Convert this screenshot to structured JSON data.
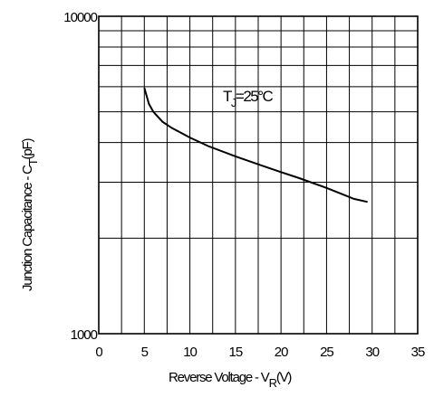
{
  "chart_data": {
    "type": "line",
    "title": "",
    "xlabel": {
      "main": "Reverse Voltage - V",
      "sub": "R",
      "unit": "(V)"
    },
    "ylabel": {
      "main": "Junction Capacitance - C",
      "sub": "T",
      "unit": "(pF)"
    },
    "xlim": [
      0,
      35
    ],
    "ylim": [
      1000,
      10000
    ],
    "yscale": "log",
    "grid": true,
    "xticks": [
      "0",
      "5",
      "10",
      "15",
      "20",
      "25",
      "30",
      "35"
    ],
    "yticks": [
      "1000",
      "10000"
    ],
    "annotation": {
      "main": "T",
      "sub": "J",
      "rest": "=25°C"
    },
    "series": [
      {
        "x": [
          5,
          5.5,
          6,
          7,
          8,
          10,
          12,
          15,
          18,
          20,
          22,
          25,
          28,
          29.5
        ],
        "y": [
          5950,
          5300,
          5000,
          4650,
          4450,
          4150,
          3900,
          3620,
          3380,
          3230,
          3090,
          2880,
          2660,
          2600
        ]
      }
    ]
  }
}
